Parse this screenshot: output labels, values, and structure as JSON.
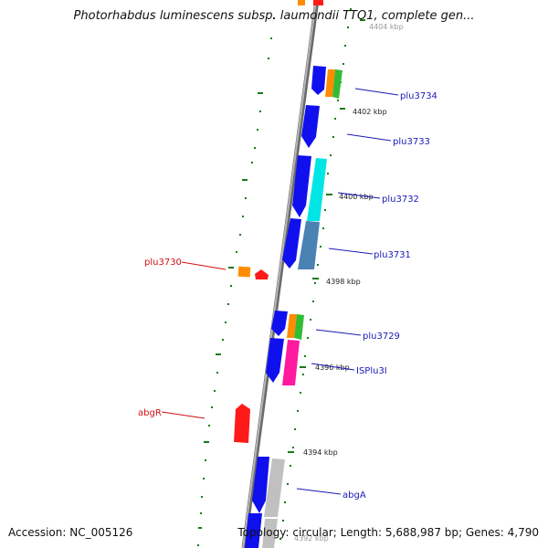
{
  "title": "Photorhabdus luminescens subsp. laumondii TTO1, complete gen...",
  "footer": {
    "accession": "Accession: NC_005126",
    "topology": "Topology: circular; Length: 5,688,987 bp; Genes: 4,790"
  },
  "colors": {
    "backbone": "#8a8a8a",
    "tick": "#1a7a1a",
    "leader_forward": "#1a1ab8",
    "leader_reverse": "#d01010"
  },
  "scale_labels": [
    "4404 kbp",
    "4402 kbp",
    "4400 kbp",
    "4398 kbp",
    "4396 kbp",
    "4394 kbp",
    "4392 kbp"
  ],
  "gene_labels": {
    "plu3734": "plu3734",
    "plu3733": "plu3733",
    "plu3732": "plu3732",
    "plu3731": "plu3731",
    "plu3730": "plu3730",
    "plu3729": "plu3729",
    "ISPlu3I": "ISPlu3I",
    "abgR": "abgR",
    "abgA": "abgA"
  }
}
